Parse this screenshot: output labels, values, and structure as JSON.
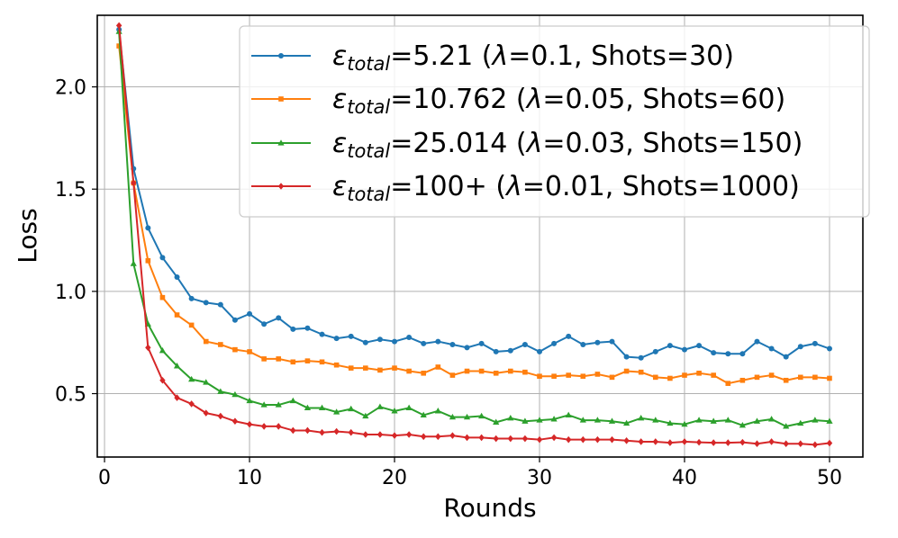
{
  "chart_data": {
    "type": "line",
    "title": "",
    "xlabel": "Rounds",
    "ylabel": "Loss",
    "xlim": [
      -0.5,
      52.3
    ],
    "ylim": [
      0.19,
      2.35
    ],
    "xticks": [
      0,
      10,
      20,
      30,
      40,
      50
    ],
    "yticks": [
      0.5,
      1.0,
      1.5,
      2.0
    ],
    "xtick_labels": [
      "0",
      "10",
      "20",
      "30",
      "40",
      "50"
    ],
    "ytick_labels": [
      "0.5",
      "1.0",
      "1.5",
      "2.0"
    ],
    "grid": true,
    "legend_position": "top-right",
    "x": [
      1,
      2,
      3,
      4,
      5,
      6,
      7,
      8,
      9,
      10,
      11,
      12,
      13,
      14,
      15,
      16,
      17,
      18,
      19,
      20,
      21,
      22,
      23,
      24,
      25,
      26,
      27,
      28,
      29,
      30,
      31,
      32,
      33,
      34,
      35,
      36,
      37,
      38,
      39,
      40,
      41,
      42,
      43,
      44,
      45,
      46,
      47,
      48,
      49,
      50
    ],
    "series": [
      {
        "name": "blue",
        "label_pre": "=5.21 (",
        "label_mid": "=0.1, Shots=30)",
        "color": "#1f77b4",
        "marker": "circle",
        "values": [
          2.28,
          1.6,
          1.31,
          1.165,
          1.07,
          0.965,
          0.945,
          0.935,
          0.86,
          0.89,
          0.84,
          0.87,
          0.815,
          0.82,
          0.79,
          0.77,
          0.78,
          0.75,
          0.765,
          0.755,
          0.775,
          0.745,
          0.755,
          0.74,
          0.725,
          0.745,
          0.705,
          0.71,
          0.74,
          0.705,
          0.745,
          0.78,
          0.74,
          0.75,
          0.755,
          0.68,
          0.675,
          0.705,
          0.735,
          0.715,
          0.735,
          0.7,
          0.695,
          0.695,
          0.755,
          0.72,
          0.68,
          0.73,
          0.745,
          0.72
        ]
      },
      {
        "name": "orange",
        "label_pre": "=10.762 (",
        "label_mid": "=0.05, Shots=60)",
        "color": "#ff7f0e",
        "marker": "square",
        "values": [
          2.2,
          1.53,
          1.15,
          0.97,
          0.885,
          0.835,
          0.755,
          0.74,
          0.715,
          0.705,
          0.67,
          0.67,
          0.655,
          0.66,
          0.655,
          0.64,
          0.625,
          0.625,
          0.615,
          0.625,
          0.61,
          0.6,
          0.63,
          0.59,
          0.61,
          0.61,
          0.6,
          0.61,
          0.605,
          0.585,
          0.585,
          0.59,
          0.585,
          0.595,
          0.58,
          0.61,
          0.605,
          0.58,
          0.575,
          0.59,
          0.6,
          0.59,
          0.55,
          0.565,
          0.58,
          0.59,
          0.565,
          0.58,
          0.58,
          0.575
        ]
      },
      {
        "name": "green",
        "label_pre": "=25.014 (",
        "label_mid": "=0.03, Shots=150)",
        "color": "#2ca02c",
        "marker": "triangle",
        "values": [
          2.27,
          1.135,
          0.84,
          0.71,
          0.635,
          0.57,
          0.555,
          0.51,
          0.495,
          0.465,
          0.445,
          0.445,
          0.465,
          0.43,
          0.43,
          0.41,
          0.425,
          0.39,
          0.435,
          0.415,
          0.43,
          0.395,
          0.415,
          0.385,
          0.385,
          0.39,
          0.36,
          0.38,
          0.365,
          0.37,
          0.375,
          0.395,
          0.37,
          0.37,
          0.365,
          0.355,
          0.38,
          0.37,
          0.355,
          0.35,
          0.37,
          0.365,
          0.37,
          0.345,
          0.365,
          0.375,
          0.34,
          0.355,
          0.37,
          0.365
        ]
      },
      {
        "name": "red",
        "label_pre": "=100+ (",
        "label_mid": "=0.01, Shots=1000)",
        "color": "#d62728",
        "marker": "diamond",
        "values": [
          2.3,
          1.53,
          0.725,
          0.565,
          0.48,
          0.45,
          0.405,
          0.39,
          0.365,
          0.35,
          0.34,
          0.34,
          0.32,
          0.32,
          0.31,
          0.315,
          0.31,
          0.3,
          0.3,
          0.295,
          0.3,
          0.29,
          0.29,
          0.295,
          0.285,
          0.285,
          0.28,
          0.28,
          0.28,
          0.275,
          0.285,
          0.275,
          0.275,
          0.275,
          0.275,
          0.27,
          0.265,
          0.265,
          0.26,
          0.265,
          0.262,
          0.26,
          0.26,
          0.262,
          0.255,
          0.265,
          0.255,
          0.255,
          0.25,
          0.258
        ]
      }
    ]
  },
  "legend": {
    "epsilon": "ε",
    "subscript": "total",
    "lambda": "λ"
  }
}
